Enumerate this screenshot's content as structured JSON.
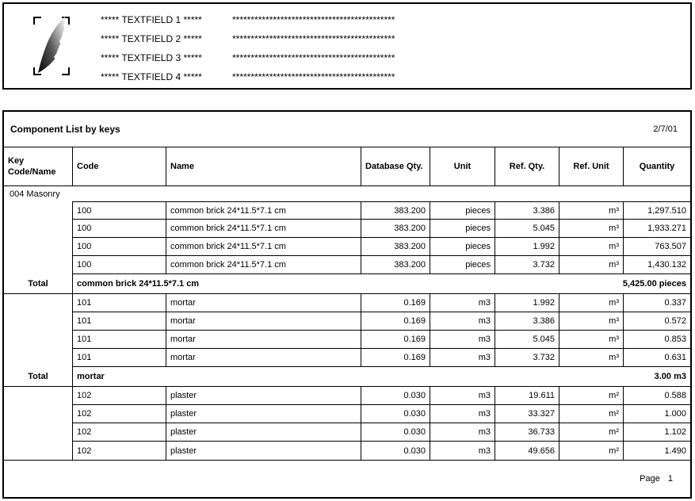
{
  "form_header": {
    "logo": "quill-feather-logo",
    "fields": [
      {
        "label": "***** TEXTFIELD 1 *****",
        "line": "********************************************"
      },
      {
        "label": "***** TEXTFIELD 2 *****",
        "line": "********************************************"
      },
      {
        "label": "***** TEXTFIELD 3 *****",
        "line": "********************************************"
      },
      {
        "label": "***** TEXTFIELD 4 *****",
        "line": "********************************************"
      }
    ]
  },
  "report": {
    "title": "Component List by keys",
    "date": "2/7/01",
    "columns": [
      {
        "label": "Key\nCode/Name",
        "align": "left"
      },
      {
        "label": "Code",
        "align": "left"
      },
      {
        "label": "Name",
        "align": "left"
      },
      {
        "label": "Database Qty.",
        "align": "left"
      },
      {
        "label": "Unit",
        "align": "center"
      },
      {
        "label": "Ref. Qty.",
        "align": "center"
      },
      {
        "label": "Ref. Unit",
        "align": "center"
      },
      {
        "label": "Quantity",
        "align": "center"
      }
    ],
    "group_header": "004 Masonry",
    "sections": [
      {
        "total_label": "Total",
        "rows": [
          {
            "code": "100",
            "name": "common brick 24*11.5*7.1 cm",
            "database_qty": "383.200",
            "unit": "pieces",
            "ref_qty": "3.386",
            "ref_unit": "m³",
            "quantity": "1,297.510"
          },
          {
            "code": "100",
            "name": "common brick 24*11.5*7.1 cm",
            "database_qty": "383.200",
            "unit": "pieces",
            "ref_qty": "5.045",
            "ref_unit": "m³",
            "quantity": "1,933.271"
          },
          {
            "code": "100",
            "name": "common brick 24*11.5*7.1 cm",
            "database_qty": "383.200",
            "unit": "pieces",
            "ref_qty": "1.992",
            "ref_unit": "m³",
            "quantity": "763.507"
          },
          {
            "code": "100",
            "name": "common brick 24*11.5*7.1 cm",
            "database_qty": "383.200",
            "unit": "pieces",
            "ref_qty": "3.732",
            "ref_unit": "m³",
            "quantity": "1,430.132"
          }
        ],
        "total_name": "common brick 24*11.5*7.1 cm",
        "total_value": "5,425.00 pieces"
      },
      {
        "total_label": "Total",
        "rows": [
          {
            "code": "101",
            "name": "mortar",
            "database_qty": "0.169",
            "unit": "m3",
            "ref_qty": "1.992",
            "ref_unit": "m³",
            "quantity": "0.337"
          },
          {
            "code": "101",
            "name": "mortar",
            "database_qty": "0.169",
            "unit": "m3",
            "ref_qty": "3.386",
            "ref_unit": "m³",
            "quantity": "0.572"
          },
          {
            "code": "101",
            "name": "mortar",
            "database_qty": "0.169",
            "unit": "m3",
            "ref_qty": "5.045",
            "ref_unit": "m³",
            "quantity": "0.853"
          },
          {
            "code": "101",
            "name": "mortar",
            "database_qty": "0.169",
            "unit": "m3",
            "ref_qty": "3.732",
            "ref_unit": "m³",
            "quantity": "0.631"
          }
        ],
        "total_name": "mortar",
        "total_value": "3.00 m3"
      },
      {
        "rows": [
          {
            "code": "102",
            "name": "plaster",
            "database_qty": "0.030",
            "unit": "m3",
            "ref_qty": "19.611",
            "ref_unit": "m²",
            "quantity": "0.588"
          },
          {
            "code": "102",
            "name": "plaster",
            "database_qty": "0.030",
            "unit": "m3",
            "ref_qty": "33.327",
            "ref_unit": "m²",
            "quantity": "1.000"
          },
          {
            "code": "102",
            "name": "plaster",
            "database_qty": "0.030",
            "unit": "m3",
            "ref_qty": "36.733",
            "ref_unit": "m²",
            "quantity": "1.102"
          },
          {
            "code": "102",
            "name": "plaster",
            "database_qty": "0.030",
            "unit": "m3",
            "ref_qty": "49.656",
            "ref_unit": "m²",
            "quantity": "1.490"
          }
        ]
      }
    ],
    "footer": {
      "label": "Page",
      "page_number": "1"
    }
  },
  "colors": {
    "border": "#000000",
    "background": "#ffffff",
    "text": "#000000"
  }
}
